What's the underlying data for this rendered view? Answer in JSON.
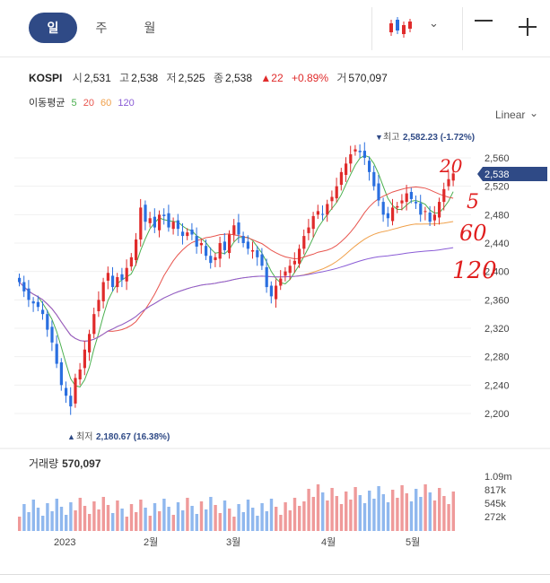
{
  "tabs": [
    {
      "label": "일",
      "active": true
    },
    {
      "label": "주",
      "active": false
    },
    {
      "label": "월",
      "active": false
    }
  ],
  "toolbar": {
    "chart_type_icon": "candlestick-icon",
    "chevron_icon": "chevron-down-icon",
    "zoom_out_icon": "minus-icon",
    "zoom_in_icon": "plus-icon"
  },
  "quote": {
    "symbol": "KOSPI",
    "open_label": "시",
    "open": "2,531",
    "high_label": "고",
    "high": "2,538",
    "low_label": "저",
    "low": "2,525",
    "close_label": "종",
    "close": "2,538",
    "change_arrow": "▲",
    "change": "22",
    "change_pct": "+0.89%",
    "volume_label": "거",
    "volume": "570,097"
  },
  "moving_average": {
    "label": "이동평균",
    "periods": [
      {
        "value": "5",
        "color": "#4cb050"
      },
      {
        "value": "20",
        "color": "#e8554e"
      },
      {
        "value": "60",
        "color": "#f0a04a"
      },
      {
        "value": "120",
        "color": "#8a5cd6"
      }
    ]
  },
  "scale": {
    "label": "Linear"
  },
  "price_axis": {
    "ticks": [
      "2,560",
      "2,520",
      "2,480",
      "2,440",
      "2,400",
      "2,360",
      "2,320",
      "2,280",
      "2,240",
      "2,200"
    ],
    "current": "2,538"
  },
  "markers": {
    "high_label": "최고",
    "high_value": "2,582.23 (-1.72%)",
    "low_label": "최저",
    "low_value": "2,180.67 (16.38%)"
  },
  "volume_panel": {
    "label": "거래량",
    "value": "570,097",
    "ticks": [
      "1.09m",
      "817k",
      "545k",
      "272k"
    ]
  },
  "x_axis": [
    "2023",
    "2월",
    "3월",
    "4월",
    "5월"
  ],
  "annotations": [
    "20",
    "5",
    "60",
    "120"
  ],
  "colors": {
    "up": "#e02b2b",
    "down": "#2a6fe0",
    "badge": "#2f4a86"
  }
}
